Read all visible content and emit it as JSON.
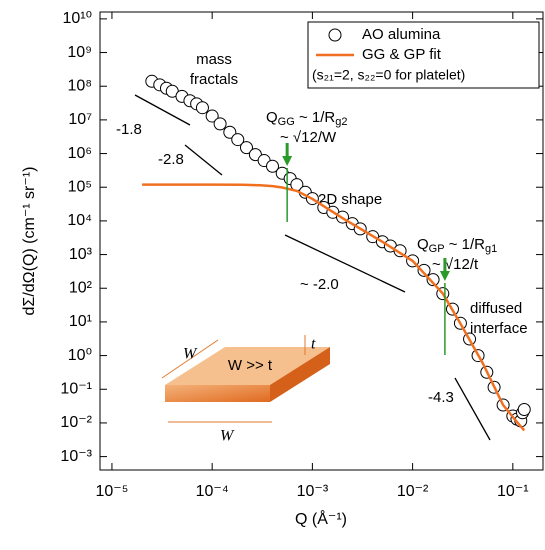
{
  "chart_data": {
    "type": "scatter",
    "xlabel": "Q (Å⁻¹)",
    "ylabel": "dΣ/dΩ(Q) (cm⁻¹ sr⁻¹)",
    "xscale": "log",
    "yscale": "log",
    "xlim": [
      7.6e-06,
      0.2
    ],
    "ylim": [
      0.0004,
      16000000000
    ],
    "xticks": [
      {
        "value": 1e-05,
        "label": "10⁻⁵"
      },
      {
        "value": 0.0001,
        "label": "10⁻⁴"
      },
      {
        "value": 0.001,
        "label": "10⁻³"
      },
      {
        "value": 0.01,
        "label": "10⁻²"
      },
      {
        "value": 0.1,
        "label": "10⁻¹"
      }
    ],
    "yticks": [
      {
        "value": 0.001,
        "label": "10⁻³"
      },
      {
        "value": 0.01,
        "label": "10⁻²"
      },
      {
        "value": 0.1,
        "label": "10⁻¹"
      },
      {
        "value": 1,
        "label": "10⁰"
      },
      {
        "value": 10,
        "label": "10¹"
      },
      {
        "value": 100,
        "label": "10²"
      },
      {
        "value": 1000,
        "label": "10³"
      },
      {
        "value": 10000,
        "label": "10⁴"
      },
      {
        "value": 100000,
        "label": "10⁵"
      },
      {
        "value": 1000000,
        "label": "10⁶"
      },
      {
        "value": 10000000,
        "label": "10⁷"
      },
      {
        "value": 100000000,
        "label": "10⁸"
      },
      {
        "value": 1000000000,
        "label": "10⁹"
      },
      {
        "value": 10000000000,
        "label": "10¹⁰"
      }
    ],
    "series": [
      {
        "name": "AO alumina",
        "kind": "points",
        "color": "#000000",
        "x": [
          2.5e-05,
          3e-05,
          3.5e-05,
          4e-05,
          5e-05,
          6e-05,
          7e-05,
          8e-05,
          0.0001,
          0.00012,
          0.00015,
          0.00018,
          0.00022,
          0.00027,
          0.00033,
          0.0004,
          0.0005,
          0.0006,
          0.0007,
          0.00085,
          0.001,
          0.0013,
          0.0016,
          0.002,
          0.0025,
          0.003,
          0.004,
          0.005,
          0.006,
          0.0075,
          0.01,
          0.013,
          0.016,
          0.02,
          0.025,
          0.03,
          0.037,
          0.045,
          0.055,
          0.065,
          0.08,
          0.1,
          0.11,
          0.12,
          0.125,
          0.13
        ],
        "values": [
          140000000,
          110000000,
          87000000,
          71000000,
          50000000,
          37000000,
          30000000,
          23000000,
          13000000,
          7600000,
          4300000,
          2600000,
          1500000,
          930000,
          620000,
          420000,
          260000,
          180000,
          120000,
          71000,
          46000,
          25000,
          18000,
          13000,
          8300,
          5800,
          3400,
          2400,
          1800,
          1300,
          650,
          340,
          180,
          69,
          24,
          9.1,
          3.1,
          1.0,
          0.32,
          0.115,
          0.034,
          0.016,
          0.013,
          0.0115,
          0.02,
          0.025
        ]
      },
      {
        "name": "GG &  GP fit",
        "kind": "line",
        "color": "#f07020",
        "x": [
          2e-05,
          0.0001,
          0.0002,
          0.0003,
          0.0004,
          0.0005,
          0.0007,
          0.001,
          0.002,
          0.005,
          0.01,
          0.02,
          0.03,
          0.05,
          0.08,
          0.1,
          0.13
        ],
        "values": [
          120000,
          120000,
          118000,
          115000,
          108000,
          98000,
          78000,
          45000,
          12000,
          2400,
          650,
          70,
          9,
          0.6,
          0.034,
          0.015,
          0.006
        ]
      }
    ],
    "legend_note": "(s₂₁=2, s₂₂=0 for platelet)",
    "vlines": [
      0.00056,
      0.021
    ],
    "vline_color": "#2a9a2a",
    "annotations": {
      "mass1": "mass",
      "mass2": "fractals",
      "s18": "-1.8",
      "s28": "-2.8",
      "shape": "2D shape",
      "s20": "~ -2.0",
      "diff1": "diffused",
      "diff2": "interface",
      "s43": "-4.3",
      "qgg": [
        {
          "text": "Q"
        },
        {
          "text": "GG",
          "sub": true
        },
        {
          "text": " ~ 1/R"
        },
        {
          "text": "g2",
          "sub": true
        }
      ],
      "qgg2": "~ √12/W",
      "qgp": [
        {
          "text": "Q"
        },
        {
          "text": "GP",
          "sub": true
        },
        {
          "text": " ~ 1/R"
        },
        {
          "text": "g1",
          "sub": true
        }
      ],
      "qgp2": "~ √12/t",
      "inset": "W >> t",
      "w1": "W",
      "w2": "W",
      "t": "t"
    }
  }
}
